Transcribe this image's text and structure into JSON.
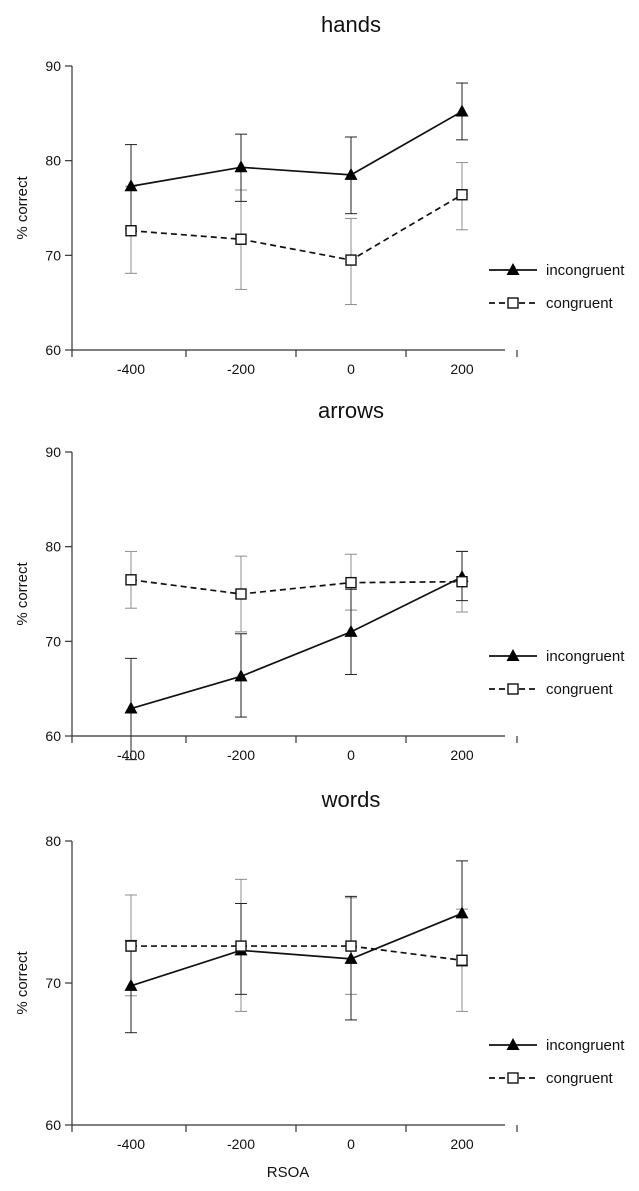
{
  "chart_data": [
    {
      "type": "line",
      "title": "hands",
      "ylabel": "% correct",
      "xlabel": "",
      "categories": [
        "-400",
        "-200",
        "0",
        "200"
      ],
      "ylim": [
        60,
        90
      ],
      "yticks": [
        "60",
        "70",
        "80",
        "90"
      ],
      "legend_position": "right",
      "series": [
        {
          "name": "incongruent",
          "values": [
            77.3,
            79.3,
            78.5,
            85.2
          ],
          "err_low": [
            72.8,
            75.7,
            74.4,
            82.2
          ],
          "err_high": [
            81.7,
            82.8,
            82.5,
            88.2
          ],
          "marker": "filled-triangle",
          "line": "solid"
        },
        {
          "name": "congruent",
          "values": [
            72.6,
            71.7,
            69.5,
            76.4
          ],
          "err_low": [
            68.1,
            66.4,
            64.8,
            72.7
          ],
          "err_high": [
            77.3,
            76.9,
            73.9,
            79.8
          ],
          "marker": "open-square",
          "line": "dashed"
        }
      ]
    },
    {
      "type": "line",
      "title": "arrows",
      "ylabel": "% correct",
      "xlabel": "",
      "categories": [
        "-400",
        "-200",
        "0",
        "200"
      ],
      "ylim": [
        60,
        90
      ],
      "yticks": [
        "60",
        "70",
        "80",
        "90"
      ],
      "legend_position": "right",
      "series": [
        {
          "name": "incongruent",
          "values": [
            62.9,
            66.3,
            71.0,
            76.8
          ],
          "err_low": [
            57.5,
            62.0,
            66.5,
            74.3
          ],
          "err_high": [
            68.2,
            70.8,
            75.5,
            79.5
          ],
          "marker": "filled-triangle",
          "line": "solid"
        },
        {
          "name": "congruent",
          "values": [
            76.5,
            75.0,
            76.2,
            76.3
          ],
          "err_low": [
            73.5,
            71.0,
            73.3,
            73.1
          ],
          "err_high": [
            79.5,
            79.0,
            79.2,
            79.5
          ],
          "marker": "open-square",
          "line": "dashed"
        }
      ]
    },
    {
      "type": "line",
      "title": "words",
      "ylabel": "% correct",
      "xlabel": "RSOA",
      "categories": [
        "-400",
        "-200",
        "0",
        "200"
      ],
      "ylim": [
        60,
        80
      ],
      "yticks": [
        "60",
        "70",
        "80"
      ],
      "legend_position": "right",
      "series": [
        {
          "name": "incongruent",
          "values": [
            69.8,
            72.3,
            71.7,
            74.9
          ],
          "err_low": [
            66.5,
            69.2,
            67.4,
            71.2
          ],
          "err_high": [
            73.0,
            75.6,
            76.1,
            78.6
          ],
          "marker": "filled-triangle",
          "line": "solid"
        },
        {
          "name": "congruent",
          "values": [
            72.6,
            72.6,
            72.6,
            71.6
          ],
          "err_low": [
            69.1,
            68.0,
            69.2,
            68.0
          ],
          "err_high": [
            76.2,
            77.3,
            76.0,
            75.2
          ],
          "marker": "open-square",
          "line": "dashed"
        }
      ]
    }
  ]
}
